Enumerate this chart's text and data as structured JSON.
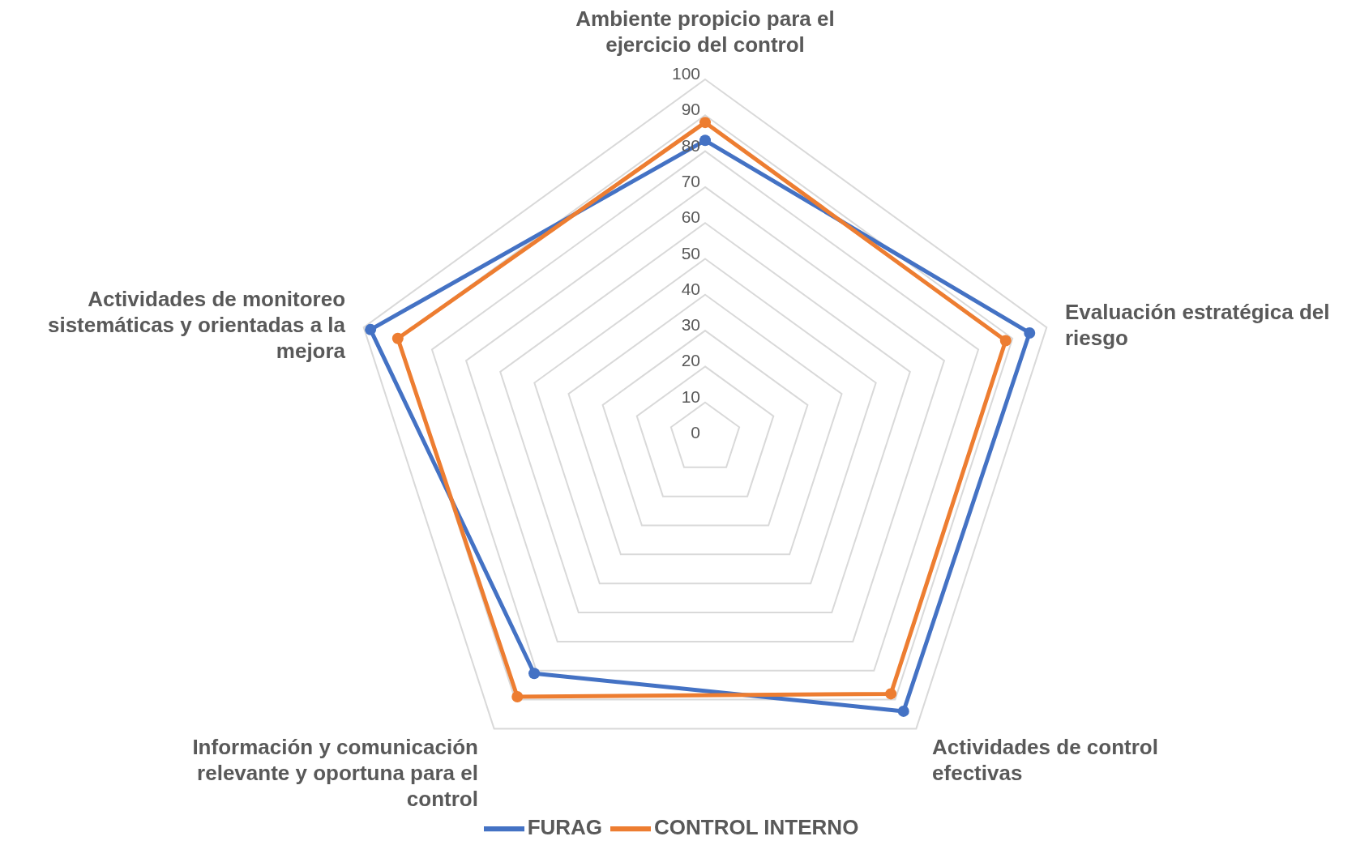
{
  "chart_data": {
    "type": "radar",
    "categories": [
      "Ambiente propicio para el ejercicio del control",
      "Evaluación estratégica del riesgo",
      "Actividades de control efectivas",
      "Información y comunicación relevante y oportuna para el control",
      "Actividades de monitoreo sistemáticas y orientadas a la mejora"
    ],
    "series": [
      {
        "name": "FURAG",
        "color": "#4472c4",
        "values": [
          83,
          95,
          94,
          81,
          98
        ]
      },
      {
        "name": "CONTROL INTERNO",
        "color": "#ed7d31",
        "values": [
          88,
          88,
          88,
          89,
          90
        ]
      }
    ],
    "ylim": [
      0,
      100
    ],
    "yticks": [
      0,
      10,
      20,
      30,
      40,
      50,
      60,
      70,
      80,
      90,
      100
    ],
    "grid": true,
    "legend": "bottom",
    "marker": "circle"
  }
}
